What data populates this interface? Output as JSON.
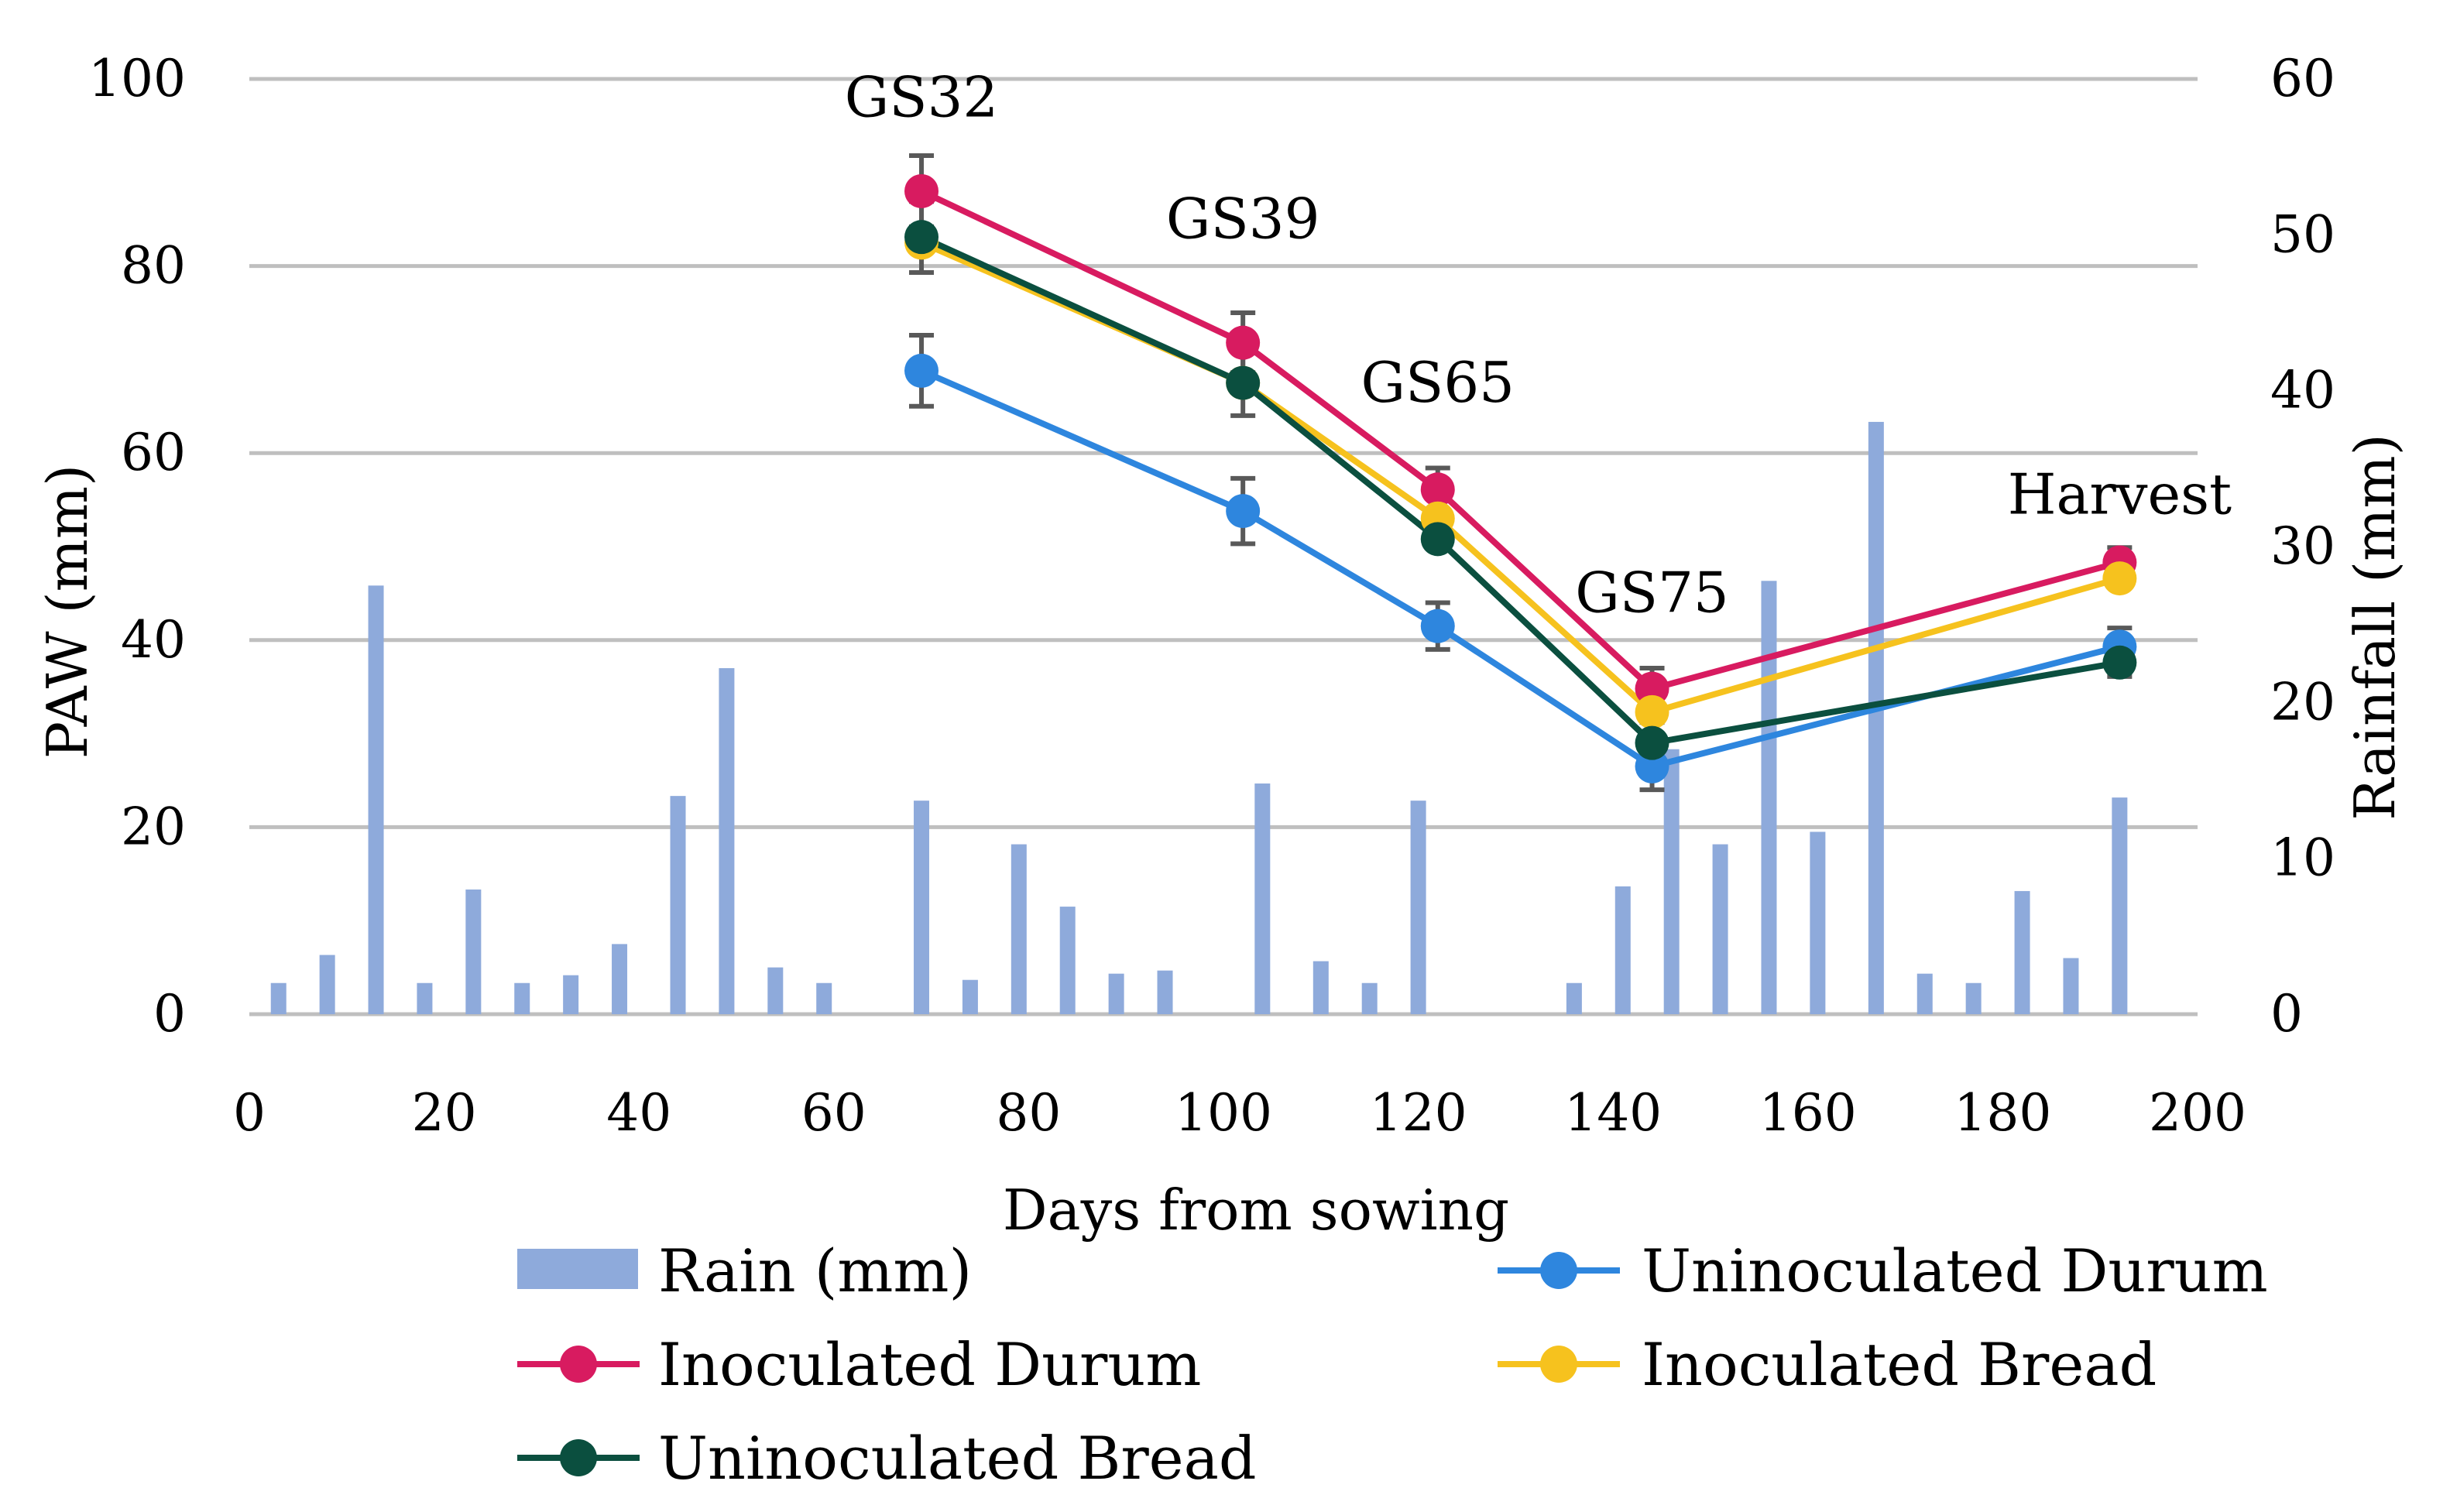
{
  "chart_data": {
    "type": "line+bar",
    "xlabel": "Days from sowing",
    "ylabel": "PAW (mm)",
    "y2label": "Rainfall (mm)",
    "xlim": [
      0,
      200
    ],
    "ylim": [
      0,
      100
    ],
    "y2lim": [
      0,
      60
    ],
    "x_ticks": [
      "0",
      "20",
      "40",
      "60",
      "80",
      "100",
      "120",
      "140",
      "160",
      "180",
      "200"
    ],
    "y_ticks": [
      "0",
      "20",
      "40",
      "60",
      "80",
      "100"
    ],
    "y2_ticks": [
      "0",
      "10",
      "20",
      "30",
      "40",
      "50",
      "60"
    ],
    "grid": true,
    "legend_position": "bottom",
    "rain": {
      "name": "Rain (mm)",
      "color": "#8eaadb",
      "days": [
        3,
        8,
        13,
        18,
        23,
        28,
        33,
        38,
        44,
        49,
        54,
        59,
        69,
        74,
        79,
        84,
        89,
        94,
        104,
        110,
        115,
        120,
        136,
        141,
        146,
        151,
        156,
        161,
        167,
        172,
        177,
        182,
        187,
        192
      ],
      "values": [
        2,
        3.8,
        27.5,
        2,
        8,
        2,
        2.5,
        4.5,
        14,
        22.2,
        3,
        2,
        13.7,
        2.2,
        10.9,
        6.9,
        2.6,
        2.8,
        14.8,
        3.4,
        2,
        13.7,
        2,
        8.2,
        17,
        10.9,
        27.8,
        11.7,
        38,
        2.6,
        2,
        7.9,
        3.6,
        13.9
      ]
    },
    "series": [
      {
        "name": "Uninoculated Durum",
        "color": "#2e86de",
        "x": [
          69,
          102,
          122,
          144,
          192
        ],
        "values": [
          68.8,
          53.8,
          41.5,
          26.5,
          39.3
        ],
        "errors": [
          3.8,
          3.5,
          2.5,
          2.5,
          2.0
        ]
      },
      {
        "name": "Inoculated Durum",
        "color": "#d81b60",
        "x": [
          69,
          102,
          122,
          144,
          192
        ],
        "values": [
          88,
          71.8,
          56.1,
          34.8,
          48.3
        ],
        "errors": [
          3.8,
          3.2,
          2.3,
          2.2,
          1.6
        ]
      },
      {
        "name": "Inoculated Bread",
        "color": "#f6c21e",
        "x": [
          69,
          102,
          122,
          144,
          192
        ],
        "values": [
          82.5,
          67.5,
          53,
          32.3,
          46.6
        ],
        "errors": [
          0,
          0,
          0,
          0,
          0
        ]
      },
      {
        "name": "Uninoculated Bread",
        "color": "#0b4f3f",
        "x": [
          69,
          102,
          122,
          144,
          192
        ],
        "values": [
          83.1,
          67.5,
          50.8,
          29,
          37.6
        ],
        "errors": [
          3.8,
          3.5,
          0,
          2.2,
          1.5
        ]
      }
    ],
    "annotations": [
      {
        "text": "GS32",
        "x": 69,
        "y": 96
      },
      {
        "text": "GS39",
        "x": 102,
        "y": 83
      },
      {
        "text": "GS65",
        "x": 122,
        "y": 65.5
      },
      {
        "text": "GS75",
        "x": 144,
        "y": 43
      },
      {
        "text": "Harvest",
        "x": 192,
        "y": 53.5
      }
    ]
  }
}
